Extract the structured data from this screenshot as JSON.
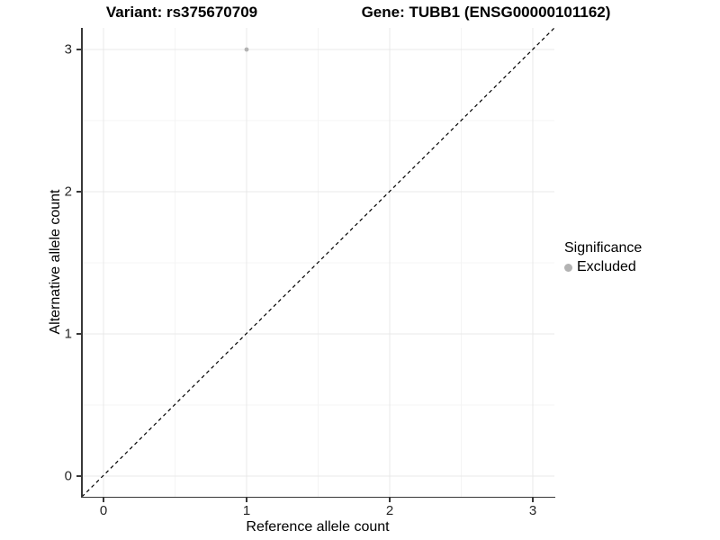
{
  "header": {
    "variant_title": "Variant: rs375670709",
    "gene_title": "Gene: TUBB1 (ENSG00000101162)"
  },
  "chart_data": {
    "type": "scatter",
    "title": "Variant: rs375670709   Gene: TUBB1 (ENSG00000101162)",
    "xlabel": "Reference allele count",
    "ylabel": "Alternative allele count",
    "x_ticks": [
      0,
      1,
      2,
      3
    ],
    "y_ticks": [
      0,
      1,
      2,
      3
    ],
    "xlim": [
      -0.15,
      3.15
    ],
    "ylim": [
      -0.15,
      3.15
    ],
    "grid": "on",
    "identity_line": {
      "style": "dashed",
      "slope": 1,
      "intercept": 0,
      "color": "#000000"
    },
    "series": [
      {
        "name": "Excluded",
        "color": "#b3b3b3",
        "points": [
          {
            "x": 1,
            "y": 3
          }
        ]
      }
    ],
    "legend": {
      "title": "Significance",
      "position": "right",
      "items": [
        {
          "label": "Excluded",
          "color": "#b3b3b3"
        }
      ]
    }
  },
  "colors": {
    "background": "#ffffff",
    "grid_major": "#e8e8e8",
    "grid_minor": "#f4f4f4",
    "axis_line": "#383838",
    "tick_text": "#262626",
    "point": "#b3b3b3"
  }
}
